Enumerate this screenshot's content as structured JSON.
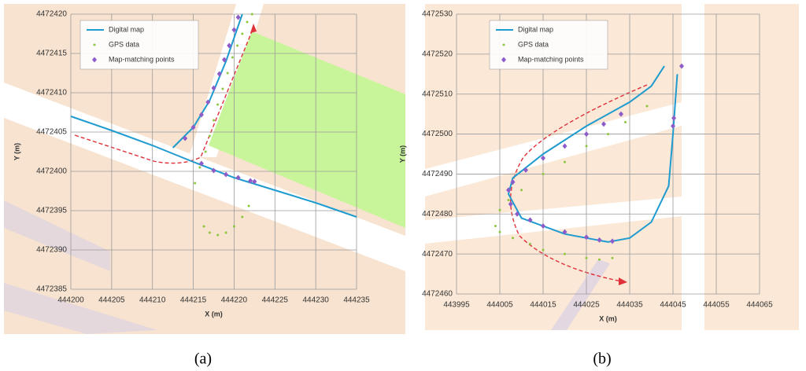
{
  "chart_data": [
    {
      "type": "line",
      "label": "(a)",
      "x_label": "X (m)",
      "y_label": "Y (m)",
      "xlim": [
        444200,
        444235
      ],
      "xticks": [
        444200,
        444205,
        444210,
        444215,
        444220,
        444225,
        444230,
        444235
      ],
      "ylim": [
        4472385,
        4472420
      ],
      "yticks": [
        4472385,
        4472390,
        4472395,
        4472400,
        4472405,
        4472410,
        4472415,
        4472420
      ],
      "grid": true,
      "legend": "upper left",
      "series": [
        {
          "name": "Digital map",
          "mode": "line",
          "color": "#1f9bcf",
          "x": [
            444200,
            444205,
            444210,
            444215,
            444220,
            444225,
            444230,
            444235,
            null,
            444212.5,
            444215,
            444217,
            444219,
            444221
          ],
          "values": [
            4472407,
            4472405.2,
            4472403.3,
            4472401.2,
            4472399.2,
            4472397.6,
            4472396,
            4472394.2,
            null,
            4472403,
            4472405.6,
            4472409,
            4472414,
            4472420
          ]
        },
        {
          "name": "GPS data",
          "mode": "points",
          "color": "#8dc63f",
          "x": [
            444215.2,
            444215.8,
            444216.5,
            444217,
            444217.5,
            444218,
            444218.6,
            444219.2,
            444219.8,
            444220.4,
            444221,
            444221.6,
            444222.2,
            444216.3,
            444217,
            444218,
            444219,
            444220,
            444221,
            444221.8
          ],
          "values": [
            4472398.5,
            4472400.5,
            4472402.5,
            4472404.5,
            4472406.5,
            4472408.5,
            4472410.5,
            4472412.5,
            4472414.5,
            4472416,
            4472417.5,
            4472419,
            4472420,
            4472393,
            4472392.2,
            4472391.9,
            4472392.2,
            4472393,
            4472394.2,
            4472395.6
          ]
        },
        {
          "name": "Map-matching points",
          "mode": "diamonds",
          "color": "#8e5cc9",
          "x": [
            444214,
            444215,
            444216,
            444216.8,
            444217.5,
            444218.2,
            444218.8,
            444219.4,
            444220,
            444220.5,
            444216,
            444217.5,
            444219,
            444220.5,
            444222,
            444222.5
          ],
          "values": [
            4472404.2,
            4472405.6,
            4472407.2,
            4472408.8,
            4472410.6,
            4472412.4,
            4472414.2,
            4472416,
            4472418,
            4472419.6,
            4472401,
            4472400.1,
            4472399.6,
            4472399.2,
            4472398.8,
            4472398.7
          ]
        }
      ]
    },
    {
      "type": "line",
      "label": "(b)",
      "x_label": "X (m)",
      "y_label": "Y (m)",
      "xlim": [
        443995,
        444065
      ],
      "xticks": [
        443995,
        444005,
        444015,
        444025,
        444035,
        444045,
        444055,
        444065
      ],
      "ylim": [
        4472460,
        4472530
      ],
      "yticks": [
        4472460,
        4472470,
        4472480,
        4472490,
        4472500,
        4472510,
        4472520,
        4472530
      ],
      "grid": true,
      "legend": "upper left",
      "series": [
        {
          "name": "Digital map",
          "mode": "line",
          "color": "#1f9bcf",
          "x": [
            444043,
            444040,
            444035,
            444025,
            444015,
            444008,
            444007,
            444010,
            444020,
            444030,
            444035,
            444040,
            444044,
            444045,
            444046
          ],
          "values": [
            4472517,
            4472512,
            4472508,
            4472502,
            4472495,
            4472489,
            4472485,
            4472479,
            4472475,
            4472473,
            4472474,
            4472478,
            4472487,
            4472500,
            4472515
          ]
        },
        {
          "name": "GPS data",
          "mode": "points",
          "color": "#8dc63f",
          "x": [
            444039,
            444034,
            444030,
            444025,
            444020,
            444015,
            444010,
            444007,
            444005,
            444004,
            444005,
            444008,
            444012,
            444015,
            444020,
            444025,
            444028,
            444031
          ],
          "values": [
            4472507,
            4472503,
            4472500,
            4472497,
            4472493,
            4472490,
            4472486,
            4472483.5,
            4472481,
            4472477,
            4472475.5,
            4472474,
            4472472.5,
            4472471,
            4472470,
            4472469,
            4472468.6,
            4472469
          ]
        },
        {
          "name": "Map-matching points",
          "mode": "diamonds",
          "color": "#8e5cc9",
          "x": [
            444033,
            444029,
            444025,
            444020,
            444015,
            444011,
            444008,
            444007,
            444007.5,
            444009,
            444012,
            444015,
            444020,
            444025,
            444028,
            444031,
            444045,
            444045.2,
            444047
          ],
          "values": [
            4472505,
            4472502.5,
            4472500,
            4472497,
            4472494,
            4472491,
            4472488,
            4472486,
            4472482.5,
            4472480,
            4472478.5,
            4472477,
            4472475.5,
            4472474.2,
            4472473.5,
            4472473.2,
            4472502,
            4472504,
            4472517
          ]
        }
      ]
    }
  ]
}
